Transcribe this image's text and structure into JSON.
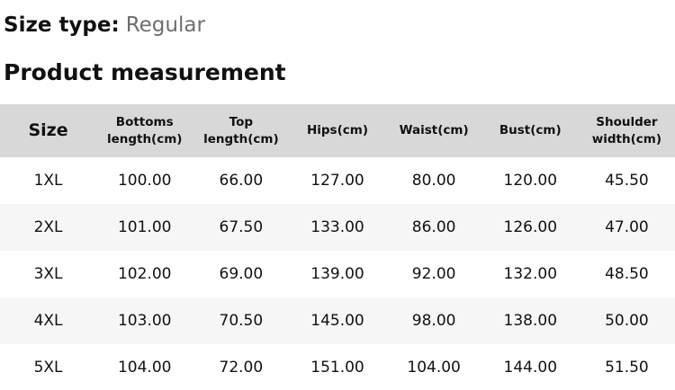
{
  "header": {
    "size_type_label": "Size type:",
    "size_type_value": "Regular",
    "section_title": "Product measurement"
  },
  "table": {
    "columns": [
      "Size",
      "Bottoms length(cm)",
      "Top length(cm)",
      "Hips(cm)",
      "Waist(cm)",
      "Bust(cm)",
      "Shoulder width(cm)"
    ],
    "rows": [
      {
        "size": "1XL",
        "values": [
          "100.00",
          "66.00",
          "127.00",
          "80.00",
          "120.00",
          "45.50"
        ]
      },
      {
        "size": "2XL",
        "values": [
          "101.00",
          "67.50",
          "133.00",
          "86.00",
          "126.00",
          "47.00"
        ]
      },
      {
        "size": "3XL",
        "values": [
          "102.00",
          "69.00",
          "139.00",
          "92.00",
          "132.00",
          "48.50"
        ]
      },
      {
        "size": "4XL",
        "values": [
          "103.00",
          "70.50",
          "145.00",
          "98.00",
          "138.00",
          "50.00"
        ]
      },
      {
        "size": "5XL",
        "values": [
          "104.00",
          "72.00",
          "151.00",
          "104.00",
          "144.00",
          "51.50"
        ]
      }
    ]
  },
  "colors": {
    "header_bg": "#d8d8d8",
    "stripe_bg": "#f6f6f6",
    "text": "#111111",
    "muted": "#6e6e6e"
  }
}
